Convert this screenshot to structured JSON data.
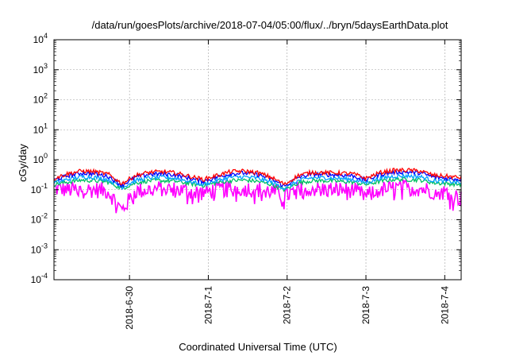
{
  "chart_data": {
    "type": "line",
    "title": "/data/run/goesPlots/archive/2018-07-04/05:00/flux/../bryn/5daysEarthData.plot",
    "xlabel": "Coordinated Universal Time (UTC)",
    "ylabel": "cGy/day",
    "y_scale": "log",
    "ylim": [
      0.0001,
      10000
    ],
    "y_ticks": [
      {
        "value": 10000,
        "base": "10",
        "exp": "4"
      },
      {
        "value": 1000,
        "base": "10",
        "exp": "3"
      },
      {
        "value": 100,
        "base": "10",
        "exp": "2"
      },
      {
        "value": 10,
        "base": "10",
        "exp": "1"
      },
      {
        "value": 1,
        "base": "10",
        "exp": "0"
      },
      {
        "value": 0.1,
        "base": "10",
        "exp": "-1"
      },
      {
        "value": 0.01,
        "base": "10",
        "exp": "-2"
      },
      {
        "value": 0.001,
        "base": "10",
        "exp": "-3"
      },
      {
        "value": 0.0001,
        "base": "10",
        "exp": "-4"
      }
    ],
    "xlim": [
      "2018-06-29T01:00",
      "2018-07-04T05:00"
    ],
    "x_ticks": [
      "2018-6-30",
      "2018-7-1",
      "2018-7-2",
      "2018-7-3",
      "2018-7-4"
    ],
    "grid": true,
    "legend": "none",
    "series": [
      {
        "color": "#ff0000",
        "values": [
          0.24,
          0.34,
          0.42,
          0.4,
          0.33,
          0.16,
          0.3,
          0.38,
          0.4,
          0.36,
          0.28,
          0.22,
          0.3,
          0.4,
          0.42,
          0.37,
          0.26,
          0.15,
          0.3,
          0.38,
          0.37,
          0.36,
          0.34,
          0.24,
          0.37,
          0.44,
          0.45,
          0.42,
          0.3,
          0.28,
          0.25
        ]
      },
      {
        "color": "#0000ff",
        "values": [
          0.21,
          0.29,
          0.36,
          0.34,
          0.28,
          0.14,
          0.26,
          0.33,
          0.34,
          0.31,
          0.24,
          0.19,
          0.26,
          0.34,
          0.36,
          0.32,
          0.23,
          0.13,
          0.26,
          0.33,
          0.32,
          0.31,
          0.29,
          0.21,
          0.32,
          0.38,
          0.39,
          0.36,
          0.26,
          0.24,
          0.22
        ]
      },
      {
        "color": "#00a0ff",
        "values": [
          0.17,
          0.22,
          0.27,
          0.26,
          0.22,
          0.12,
          0.2,
          0.25,
          0.26,
          0.24,
          0.19,
          0.15,
          0.2,
          0.26,
          0.27,
          0.24,
          0.18,
          0.11,
          0.2,
          0.25,
          0.25,
          0.24,
          0.22,
          0.17,
          0.24,
          0.28,
          0.29,
          0.27,
          0.2,
          0.19,
          0.17
        ]
      },
      {
        "color": "#00c060",
        "values": [
          0.15,
          0.18,
          0.21,
          0.2,
          0.18,
          0.11,
          0.17,
          0.2,
          0.2,
          0.19,
          0.16,
          0.14,
          0.17,
          0.2,
          0.21,
          0.19,
          0.15,
          0.1,
          0.17,
          0.2,
          0.2,
          0.19,
          0.18,
          0.15,
          0.19,
          0.22,
          0.22,
          0.21,
          0.17,
          0.16,
          0.15
        ]
      },
      {
        "color": "#ff00ff",
        "values": [
          0.11,
          0.1,
          0.1,
          0.1,
          0.09,
          0.02,
          0.09,
          0.1,
          0.11,
          0.1,
          0.09,
          0.08,
          0.1,
          0.11,
          0.11,
          0.1,
          0.09,
          0.06,
          0.1,
          0.11,
          0.1,
          0.1,
          0.1,
          0.06,
          0.1,
          0.11,
          0.12,
          0.11,
          0.09,
          0.08,
          0.05
        ]
      }
    ]
  }
}
